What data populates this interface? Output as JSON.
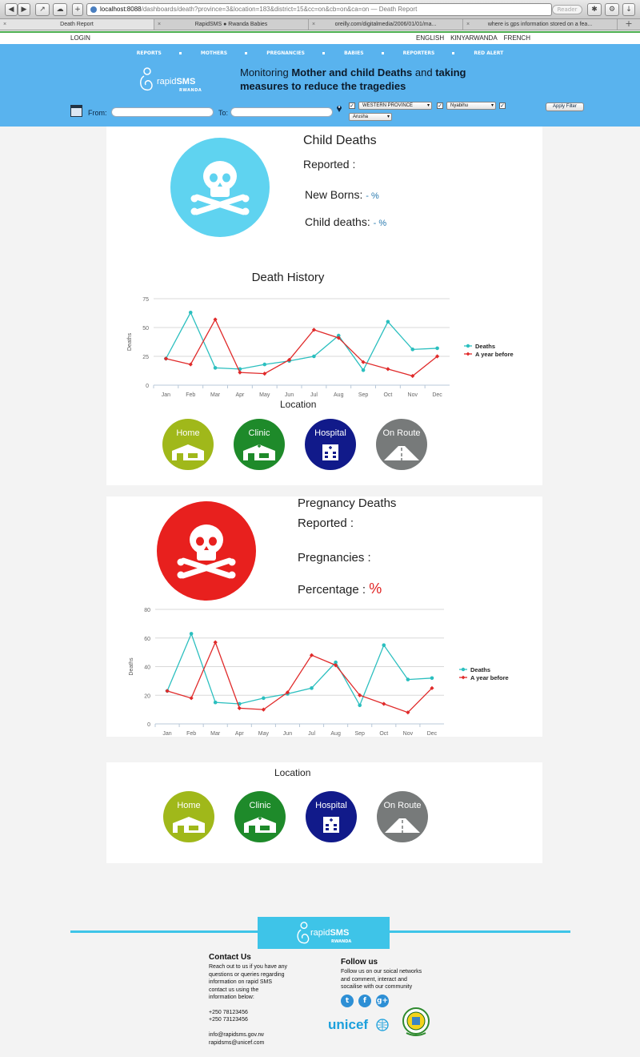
{
  "browser": {
    "url_host": "localhost:8088",
    "url_rest": "/dashboards/death?province=3&location=183&district=15&cc=on&cb=on&ca=on",
    "page_title": "— Death Report",
    "reader_label": "Reader",
    "tabs": [
      "Death Report",
      "RapidSMS ● Rwanda Babies",
      "oreilly.com/digitalmedia/2006/01/01/ma...",
      "where is gps information stored on a fea..."
    ]
  },
  "topbar": {
    "login": "LOGIN",
    "languages": [
      "ENGLISH",
      "KINYARWANDA",
      "FRENCH"
    ]
  },
  "nav": [
    "REPORTS",
    "MOTHERS",
    "PREGNANCIES",
    "BABIES",
    "REPORTERS",
    "RED ALERT"
  ],
  "logo": {
    "text_light": "rapid",
    "text_bold": "SMS",
    "sub": "RWANDA"
  },
  "tagline": {
    "part1": "Monitoring ",
    "bold1": "Mother and child Deaths",
    "part2": " and ",
    "bold2": "taking measures to reduce the tragedies"
  },
  "filters": {
    "from_label": "From:",
    "to_label": "To:",
    "from_value": "",
    "to_value": "",
    "province": "WESTERN PROVINCE",
    "district": "Nyabihu",
    "location": "Arusha",
    "apply_label": "Apply Filter"
  },
  "colors": {
    "header": "#59b3ee",
    "deaths_series": "#2bbfbf",
    "year_before_series": "#e02a2a",
    "child_skull": "#5fd3f0",
    "pregnancy_skull": "#e8201e",
    "home": "#a0b81a",
    "clinic": "#1e8a2a",
    "hospital": "#111a8a",
    "on_route": "#777a7a"
  },
  "child": {
    "title": "Child Deaths",
    "reported_label": "Reported :",
    "newborns_label": "New Borns:",
    "newborns_value": "- %",
    "child_deaths_label": "Child deaths:",
    "child_deaths_value": "- %",
    "chart_title": "Death History",
    "location_title": "Location"
  },
  "pregnancy": {
    "title": "Pregnancy Deaths",
    "reported_label": "Reported :",
    "pregnancies_label": "Pregnancies :",
    "percentage_label": "Percentage :",
    "percentage_value": "%",
    "location_title": "Location"
  },
  "locations": [
    "Home",
    "Clinic",
    "Hospital",
    "On Route"
  ],
  "chart_data": [
    {
      "type": "line",
      "title": "Death History",
      "ylabel": "Deaths",
      "ylim": [
        0,
        75
      ],
      "yticks": [
        0,
        25,
        50,
        75
      ],
      "categories": [
        "Jan",
        "Feb",
        "Mar",
        "Apr",
        "May",
        "Jun",
        "Jul",
        "Aug",
        "Sep",
        "Oct",
        "Nov",
        "Dec"
      ],
      "series": [
        {
          "name": "Deaths",
          "values": [
            23,
            63,
            15,
            14,
            18,
            21,
            25,
            43,
            13,
            55,
            31,
            32
          ]
        },
        {
          "name": "A year before",
          "values": [
            23,
            18,
            57,
            11,
            10,
            22,
            48,
            41,
            20,
            14,
            8,
            25
          ]
        }
      ],
      "legend": "right"
    },
    {
      "type": "line",
      "title": "",
      "ylabel": "Deaths",
      "ylim": [
        0,
        80
      ],
      "yticks": [
        0,
        20,
        40,
        60,
        80
      ],
      "categories": [
        "Jan",
        "Feb",
        "Mar",
        "Apr",
        "May",
        "Jun",
        "Jul",
        "Aug",
        "Sep",
        "Oct",
        "Nov",
        "Dec"
      ],
      "series": [
        {
          "name": "Deaths",
          "values": [
            23,
            63,
            15,
            14,
            18,
            21,
            25,
            43,
            13,
            55,
            31,
            32
          ]
        },
        {
          "name": "A year before",
          "values": [
            23,
            18,
            57,
            11,
            10,
            22,
            48,
            41,
            20,
            14,
            8,
            25
          ]
        }
      ],
      "legend": "right"
    }
  ],
  "footer": {
    "contact_title": "Contact Us",
    "contact_text": "Reach out to us if you have any\nquestions or queries regarding\ninformation on rapid SMS\ncontact us using the\ninformation below:",
    "phone1": "+250 78123456",
    "phone2": "+250 73123456",
    "email1": "info@rapidsms.gov.rw",
    "email2": "rapidsms@unicef.com",
    "follow_title": "Follow us",
    "follow_text": "Follow us on our soical networks\nand comment, interact and\nsocailise with our community",
    "unicef": "unicef"
  }
}
